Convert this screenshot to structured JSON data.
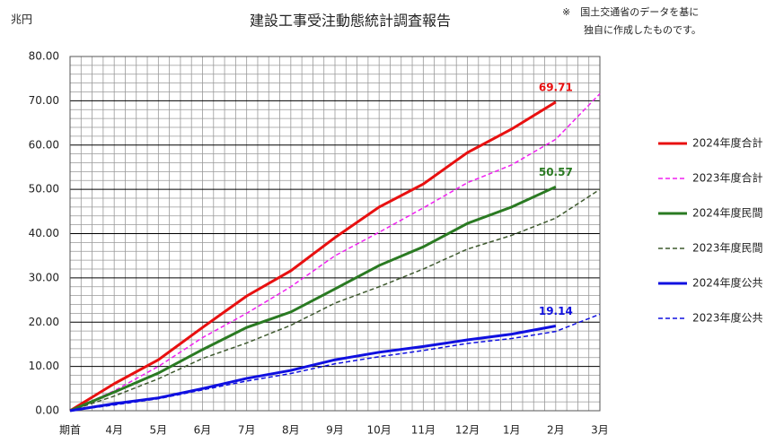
{
  "chart_data": {
    "type": "line",
    "title": "建設工事受注動態統計調査報告",
    "y_label": "兆円",
    "note": [
      "※　国土交通省のデータを基に",
      "独自に作成したものです。"
    ],
    "categories": [
      "期首",
      "4月",
      "5月",
      "6月",
      "7月",
      "8月",
      "9月",
      "10月",
      "11月",
      "12月",
      "1月",
      "2月",
      "3月"
    ],
    "ylim": [
      0,
      80
    ],
    "yticks": [
      {
        "value": 0,
        "label": "0.00"
      },
      {
        "value": 10,
        "label": "10.00"
      },
      {
        "value": 20,
        "label": "20.00"
      },
      {
        "value": 30,
        "label": "30.00"
      },
      {
        "value": 40,
        "label": "40.00"
      },
      {
        "value": 50,
        "label": "50.00"
      },
      {
        "value": 60,
        "label": "60.00"
      },
      {
        "value": 70,
        "label": "70.00"
      },
      {
        "value": 80,
        "label": "80.00"
      }
    ],
    "grid": true,
    "legend": "right",
    "series": [
      {
        "name": "2024年度合計",
        "color": "#e81010",
        "dash": false,
        "values": [
          0,
          6.1,
          11.5,
          18.8,
          25.9,
          31.6,
          39.1,
          46.0,
          51.2,
          58.3,
          63.6,
          69.71,
          null
        ],
        "value_labels": [
          null,
          null,
          null,
          null,
          null,
          null,
          null,
          null,
          null,
          null,
          null,
          "69.71",
          null
        ]
      },
      {
        "name": "2023年度合計",
        "color": "#f020f0",
        "dash": true,
        "values": [
          0,
          4.5,
          10.0,
          16.5,
          22.0,
          28.0,
          35.0,
          40.3,
          45.8,
          51.5,
          55.5,
          61.3,
          71.6
        ]
      },
      {
        "name": "2024年度民間",
        "color": "#2a7a22",
        "dash": false,
        "values": [
          0,
          4.2,
          8.5,
          13.8,
          18.8,
          22.3,
          27.5,
          32.8,
          37.0,
          42.3,
          46.0,
          50.57,
          null
        ],
        "value_labels": [
          null,
          null,
          null,
          null,
          null,
          null,
          null,
          null,
          null,
          null,
          null,
          "50.57",
          null
        ]
      },
      {
        "name": "2023年度民間",
        "color": "#3f5a2f",
        "dash": true,
        "values": [
          0,
          3.3,
          7.2,
          11.8,
          15.3,
          19.3,
          24.3,
          28.0,
          32.0,
          36.5,
          39.6,
          43.5,
          50.0
        ]
      },
      {
        "name": "2024年度公共",
        "color": "#1010e0",
        "dash": false,
        "values": [
          0,
          1.6,
          2.9,
          5.0,
          7.3,
          9.1,
          11.5,
          13.2,
          14.5,
          16.0,
          17.3,
          19.14,
          null
        ],
        "value_labels": [
          null,
          null,
          null,
          null,
          null,
          null,
          null,
          null,
          null,
          null,
          null,
          "19.14",
          null
        ]
      },
      {
        "name": "2023年度公共",
        "color": "#1010e0",
        "dash": true,
        "values": [
          0,
          1.3,
          2.7,
          4.7,
          6.7,
          8.4,
          10.6,
          12.2,
          13.6,
          15.2,
          16.3,
          17.9,
          21.8
        ]
      }
    ]
  }
}
